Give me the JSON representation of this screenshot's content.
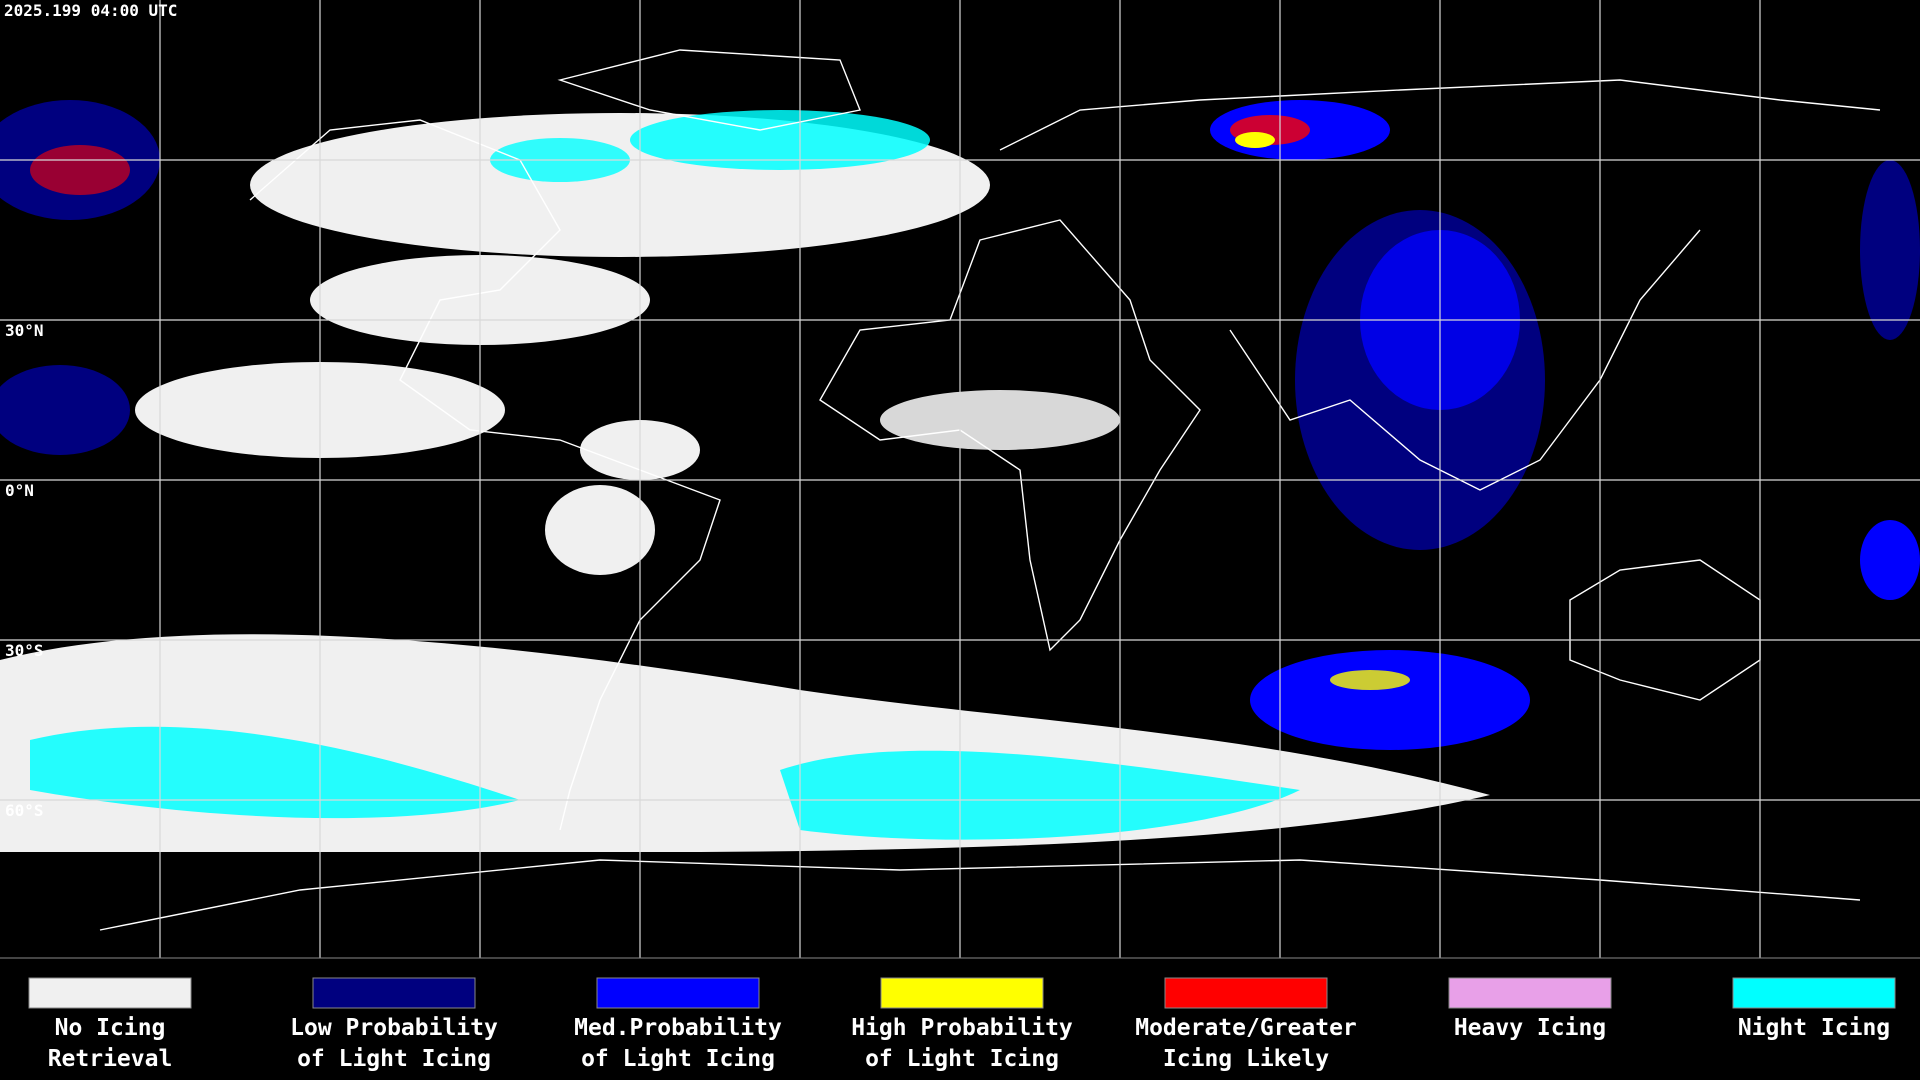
{
  "header": {
    "timestamp": "2025.199 04:00 UTC"
  },
  "map": {
    "latitude_labels": [
      "30°N",
      "0°N",
      "30°S",
      "60°S"
    ]
  },
  "legend": {
    "items": [
      {
        "label_lines": [
          "No Icing",
          "Retrieval"
        ],
        "color": "#f0f0f0"
      },
      {
        "label_lines": [
          "Low Probability",
          "of Light Icing"
        ],
        "color": "#00007f"
      },
      {
        "label_lines": [
          "Med.Probability",
          "of Light Icing"
        ],
        "color": "#0000ff"
      },
      {
        "label_lines": [
          "High Probability",
          "of Light Icing"
        ],
        "color": "#ffff00"
      },
      {
        "label_lines": [
          "Moderate/Greater",
          "Icing Likely"
        ],
        "color": "#ff0000"
      },
      {
        "label_lines": [
          "Heavy Icing"
        ],
        "color": "#e8a0e8"
      },
      {
        "label_lines": [
          "Night Icing"
        ],
        "color": "#00ffff"
      }
    ]
  }
}
